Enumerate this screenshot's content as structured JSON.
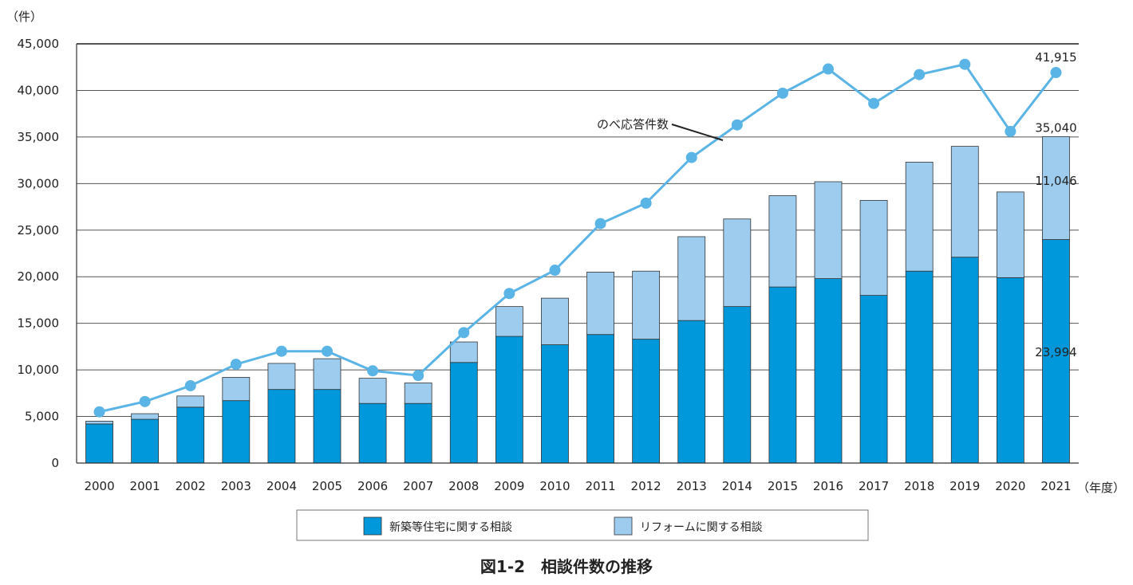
{
  "chart_data": {
    "type": "bar",
    "stacked": true,
    "y_unit": "（件）",
    "x_unit": "（年度）",
    "ylim": [
      0,
      45000
    ],
    "y_ticks": [
      "0",
      "5,000",
      "10,000",
      "15,000",
      "20,000",
      "25,000",
      "30,000",
      "35,000",
      "40,000",
      "45,000"
    ],
    "y_tick_values": [
      0,
      5000,
      10000,
      15000,
      20000,
      25000,
      30000,
      35000,
      40000,
      45000
    ],
    "categories": [
      "2000",
      "2001",
      "2002",
      "2003",
      "2004",
      "2005",
      "2006",
      "2007",
      "2008",
      "2009",
      "2010",
      "2011",
      "2012",
      "2013",
      "2014",
      "2015",
      "2016",
      "2017",
      "2018",
      "2019",
      "2020",
      "2021"
    ],
    "series": [
      {
        "name": "新築等住宅に関する相談",
        "color": "#0098db",
        "values": [
          4200,
          4700,
          6000,
          6700,
          7900,
          7900,
          6400,
          6400,
          10800,
          13600,
          12700,
          13800,
          13300,
          15300,
          16800,
          18900,
          19800,
          18000,
          20600,
          22100,
          19900,
          23994
        ]
      },
      {
        "name": "リフォームに関する相談",
        "color": "#9dccef",
        "values": [
          300,
          600,
          1200,
          2500,
          2800,
          3300,
          2700,
          2200,
          2200,
          3200,
          5000,
          6700,
          7300,
          9000,
          9400,
          9800,
          10400,
          10200,
          11700,
          11900,
          9200,
          11046
        ]
      }
    ],
    "line": {
      "name": "のべ応答件数",
      "color": "#5bb4e6",
      "values": [
        5500,
        6600,
        8300,
        10600,
        12000,
        12000,
        9900,
        9400,
        14000,
        18200,
        20700,
        25700,
        27900,
        32800,
        36300,
        39700,
        42300,
        38600,
        41700,
        42800,
        35600,
        41915
      ]
    },
    "annotations": [
      {
        "text": "41,915",
        "series": "line",
        "category": "2021"
      },
      {
        "text": "35,040",
        "series": "total",
        "category": "2021"
      },
      {
        "text": "11,046",
        "series": "リフォームに関する相談",
        "category": "2021"
      },
      {
        "text": "23,994",
        "series": "新築等住宅に関する相談",
        "category": "2021"
      }
    ],
    "line_label": "のべ応答件数",
    "legend_position": "bottom",
    "grid": true,
    "title": "図1-2　相談件数の推移"
  }
}
